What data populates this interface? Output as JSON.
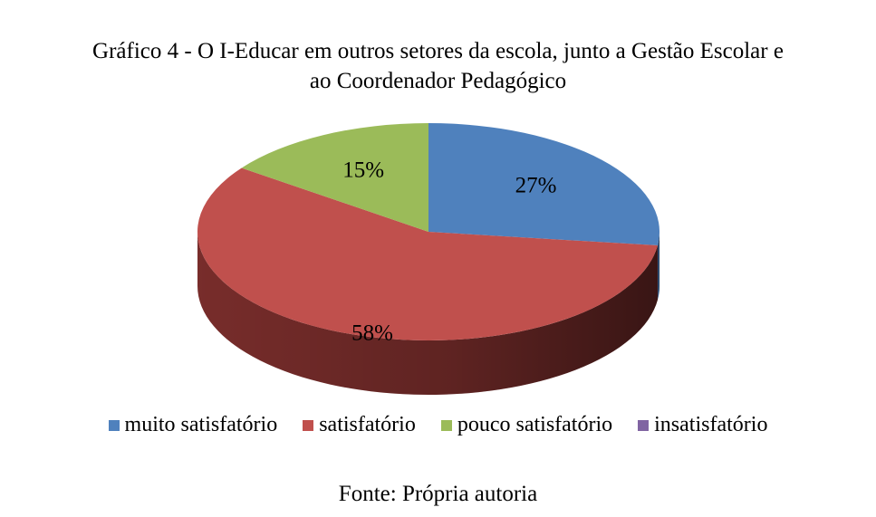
{
  "title_lines": [
    "Gráfico 4 - O I-Educar em outros setores da escola, junto a Gestão Escolar e",
    "ao Coordenador Pedagógico"
  ],
  "source": "Fonte: Própria autoria",
  "chart_data": {
    "type": "pie",
    "style": "3d",
    "title": "Gráfico 4 - O I-Educar em outros setores da escola, junto a Gestão Escolar e ao Coordenador Pedagógico",
    "categories": [
      "muito satisfatório",
      "satisfatório",
      "pouco satisfatório",
      "insatisfatório"
    ],
    "values": [
      27,
      58,
      15,
      0
    ],
    "labels": [
      "27%",
      "58%",
      "15%",
      ""
    ],
    "colors": [
      "#4F81BD",
      "#C0504D",
      "#9BBB59",
      "#8064A2"
    ],
    "side_colors": [
      "#3A6190",
      "#7E2F2D",
      "#6E8A3C",
      "#5C4878"
    ],
    "legend_position": "bottom"
  }
}
